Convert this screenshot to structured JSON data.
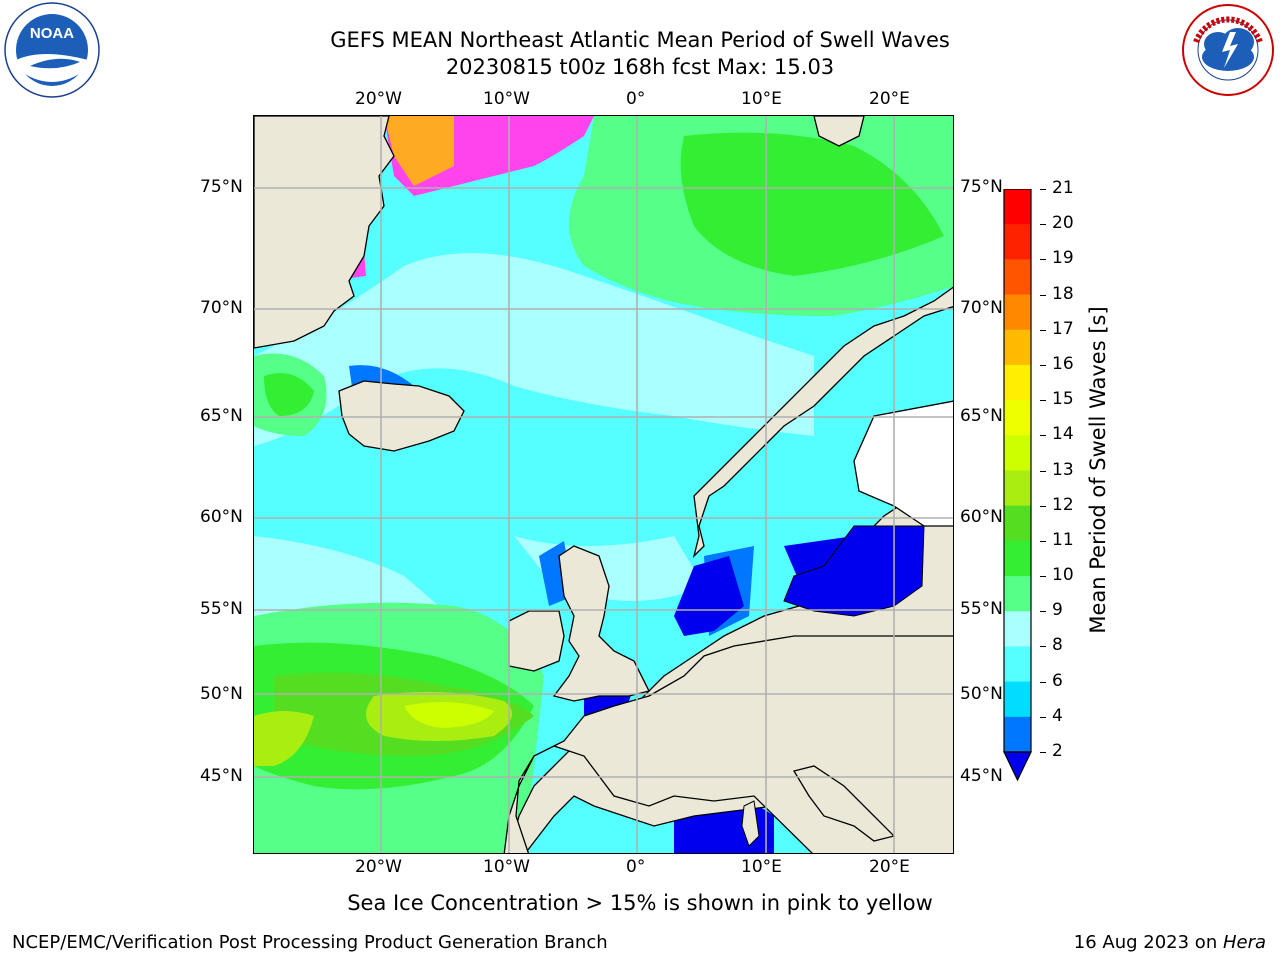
{
  "header": {
    "title_line1": "GEFS MEAN Northeast Atlantic Mean Period of Swell Waves",
    "title_line2": "20230815 t00z 168h fcst   Max: 15.03"
  },
  "logos": {
    "left_name": "NOAA",
    "left_ring_text": "NATIONAL OCEANIC AND ATMOSPHERIC ADMINISTRATION · U.S. DEPARTMENT OF COMMERCE",
    "right_ring_text": "NATIONAL WEATHER SERVICE"
  },
  "map": {
    "lon_labels_top": [
      "20°W",
      "10°W",
      "0°",
      "10°E",
      "20°E"
    ],
    "lon_labels_bottom": [
      "20°W",
      "10°W",
      "0°",
      "10°E",
      "20°E"
    ],
    "lat_labels_left": [
      "75°N",
      "70°N",
      "65°N",
      "60°N",
      "55°N",
      "50°N",
      "45°N"
    ],
    "lat_labels_right": [
      "75°N",
      "70°N",
      "65°N",
      "60°N",
      "55°N",
      "50°N",
      "45°N"
    ],
    "colors": {
      "land": "#ece8d8",
      "ice_pink": "#ff44ee",
      "ice_orange": "#ffaa22",
      "grid": "#b0b0b0"
    }
  },
  "colorbar": {
    "label": "Mean Period of Swell Waves [s]",
    "ticks": [
      "2",
      "4",
      "6",
      "8",
      "9",
      "10",
      "11",
      "12",
      "13",
      "14",
      "15",
      "16",
      "17",
      "18",
      "19",
      "20",
      "21"
    ],
    "colors": [
      "#0000ee",
      "#0077ff",
      "#00ddff",
      "#55ffff",
      "#aaffff",
      "#55ff88",
      "#33ee33",
      "#55dd22",
      "#aaee11",
      "#ccff00",
      "#eeff00",
      "#ffee00",
      "#ffbb00",
      "#ff8800",
      "#ff5500",
      "#ff2200",
      "#ff0000"
    ]
  },
  "caption": "Sea Ice Concentration > 15% is shown in pink to yellow",
  "footer": {
    "left": "NCEP/EMC/Verification Post Processing Product Generation Branch",
    "right_prefix": "16 Aug 2023 on ",
    "right_host": "Hera"
  }
}
